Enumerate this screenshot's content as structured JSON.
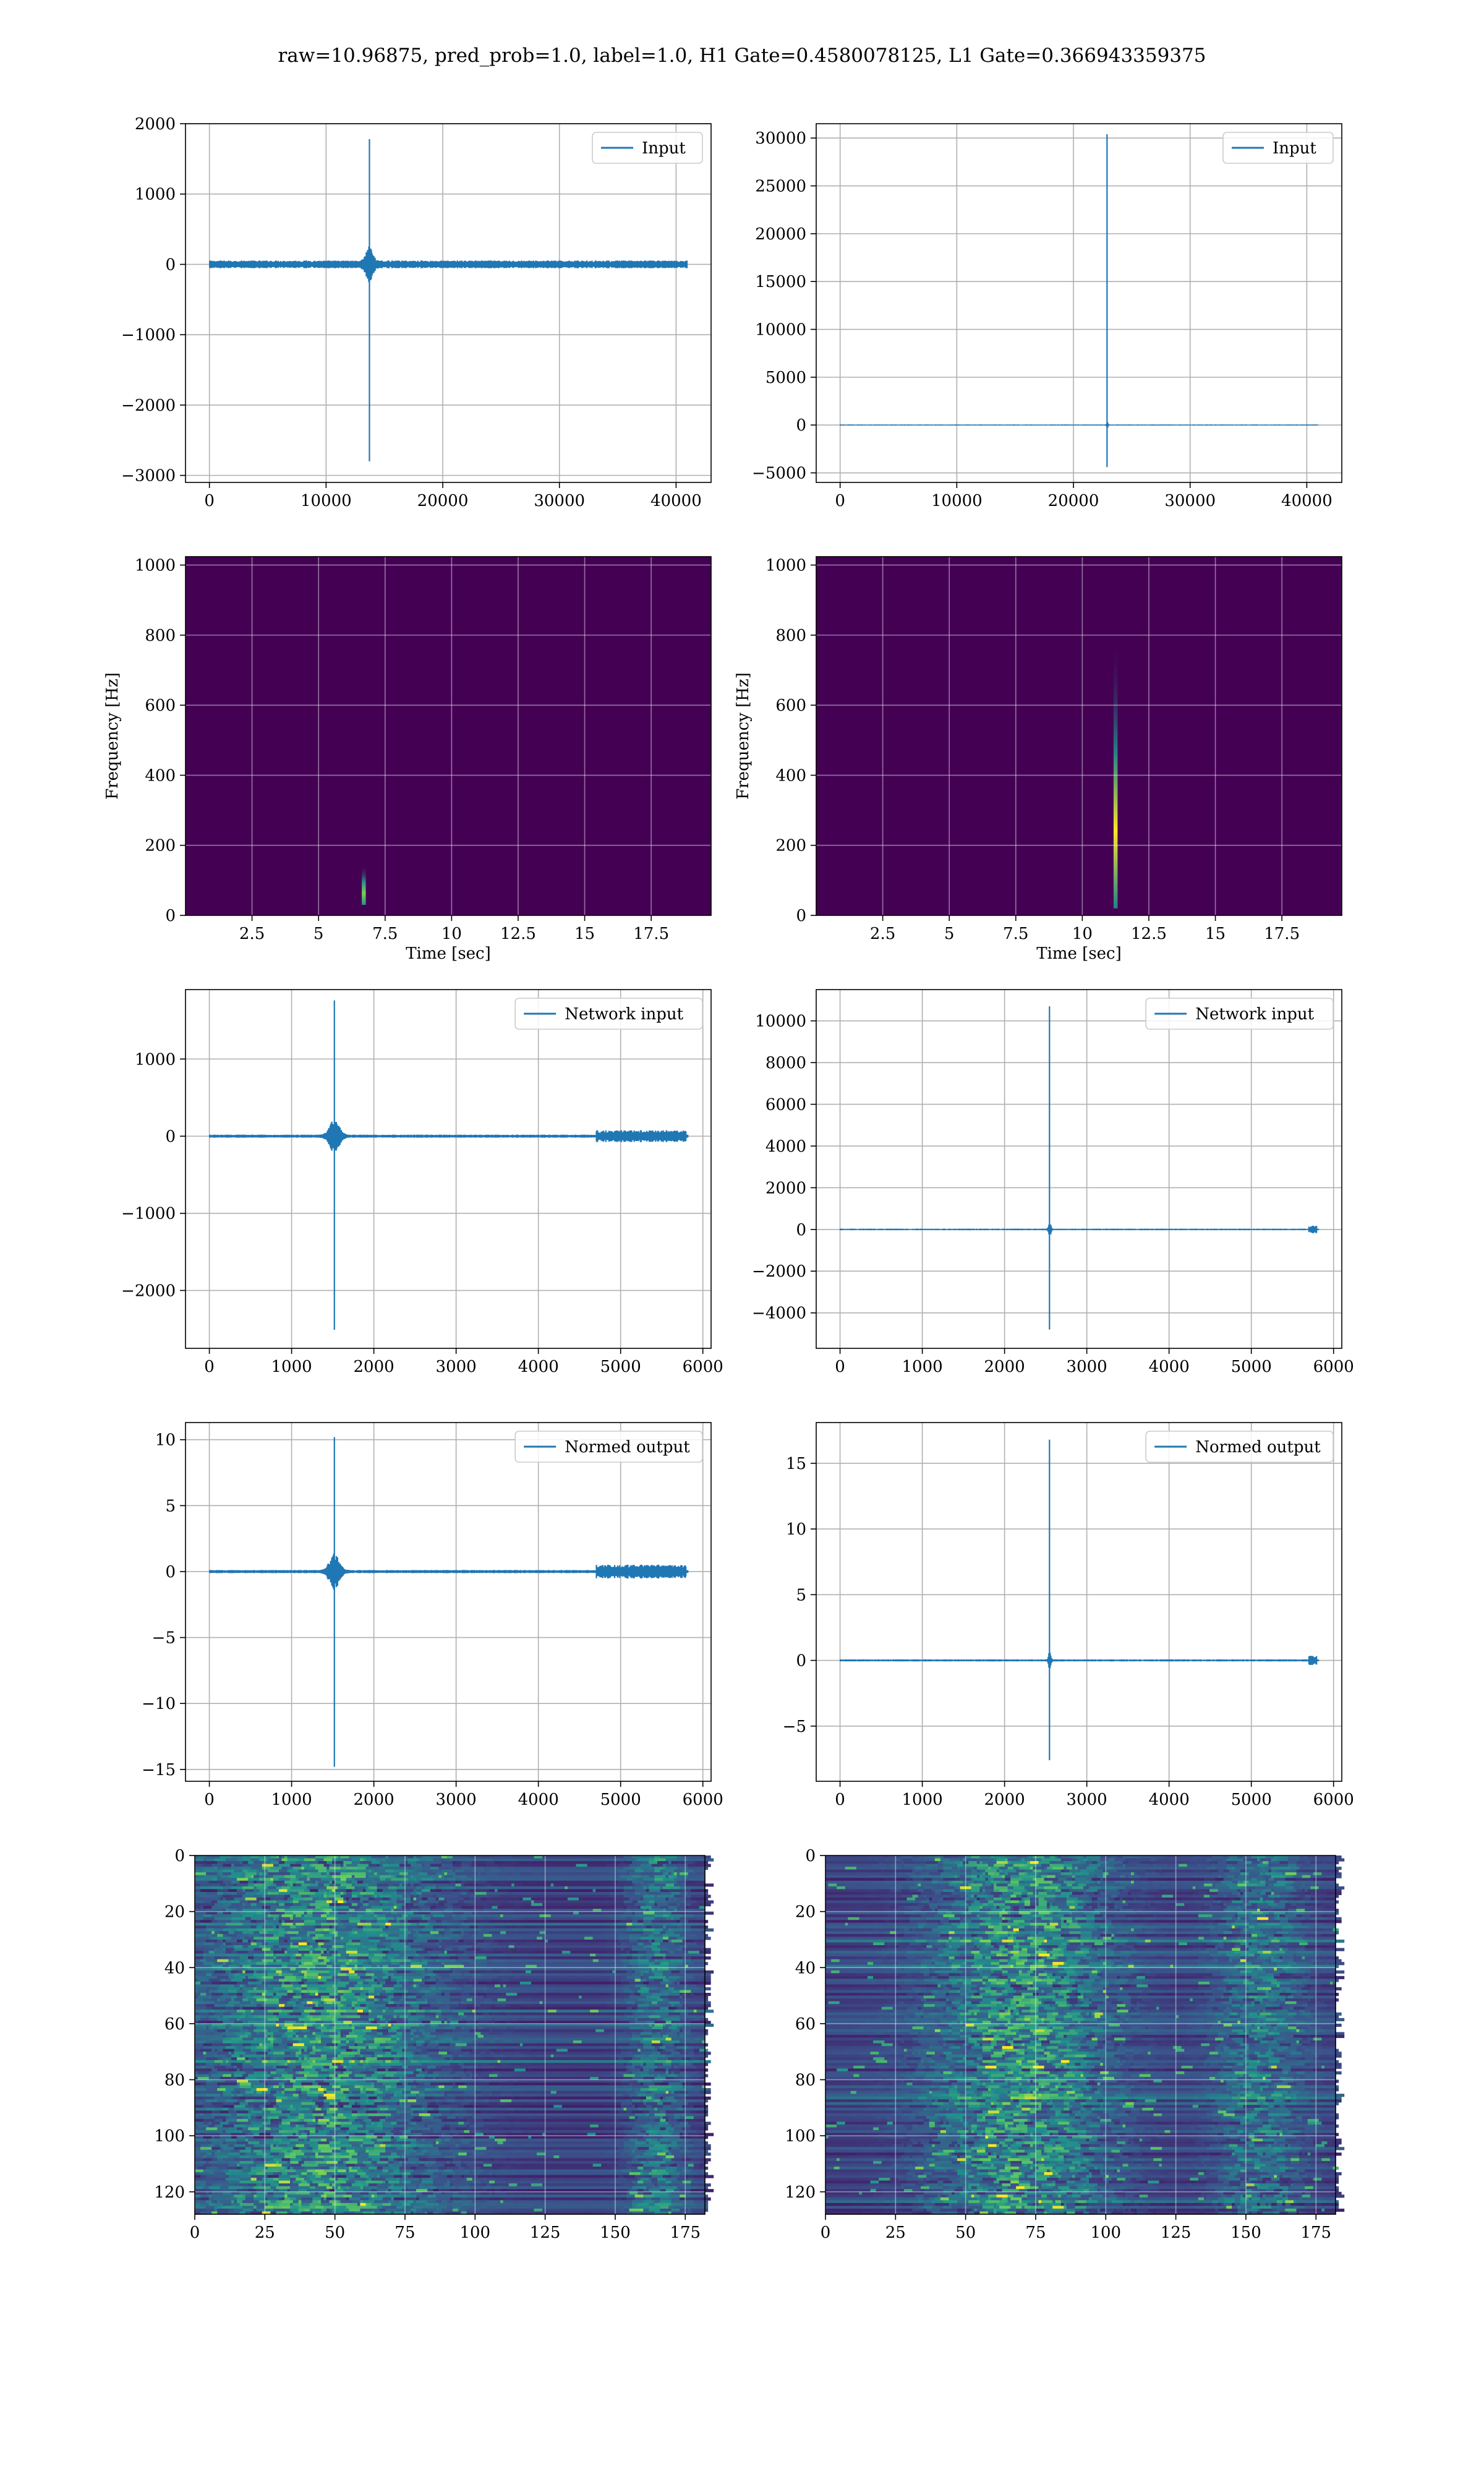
{
  "figure": {
    "suptitle": "raw=10.96875, pred_prob=1.0, label=1.0, H1 Gate=0.4580078125, L1 Gate=0.366943359375",
    "line_color": "#1f77b4"
  },
  "chart_data": [
    {
      "id": "h1-input",
      "type": "line",
      "series": [
        {
          "name": "Input"
        }
      ],
      "legend": "top-right",
      "grid": true,
      "xlim": [
        -2050,
        43000
      ],
      "ylim": [
        -3100,
        2000
      ],
      "xticks": [
        0,
        10000,
        20000,
        30000,
        40000
      ],
      "yticks": [
        -3000,
        -2000,
        -1000,
        0,
        1000,
        2000
      ],
      "signal": {
        "n": 40960,
        "noise_amp": 55,
        "burst_center": 13700,
        "burst_width": 900,
        "burst_amp": 180,
        "spike_max": 1780,
        "spike_min": -2800
      }
    },
    {
      "id": "l1-input",
      "type": "line",
      "series": [
        {
          "name": "Input"
        }
      ],
      "legend": "top-right",
      "grid": true,
      "xlim": [
        -2050,
        43000
      ],
      "ylim": [
        -6000,
        31500
      ],
      "xticks": [
        0,
        10000,
        20000,
        30000,
        40000
      ],
      "yticks": [
        -5000,
        0,
        5000,
        10000,
        15000,
        20000,
        25000,
        30000
      ],
      "signal": {
        "n": 40960,
        "noise_amp": 60,
        "burst_center": 22900,
        "burst_width": 160,
        "burst_amp": 400,
        "spike_max": 30400,
        "spike_min": -4400
      }
    },
    {
      "id": "h1-spectrogram",
      "type": "heatmap",
      "xlabel": "Time [sec]",
      "ylabel": "Frequency [Hz]",
      "grid": true,
      "xlim": [
        0,
        19.75
      ],
      "ylim": [
        0,
        1024
      ],
      "xticks": [
        2.5,
        5.0,
        7.5,
        10.0,
        12.5,
        15.0,
        17.5
      ],
      "yticks": [
        0,
        200,
        400,
        600,
        800,
        1000
      ],
      "background": "#440154",
      "blobs": [
        {
          "t": 6.7,
          "f_low": 30,
          "f_high": 140,
          "width": 0.25,
          "color": "#2a9d8f",
          "peak_color": "#7ad151"
        }
      ]
    },
    {
      "id": "l1-spectrogram",
      "type": "heatmap",
      "xlabel": "Time [sec]",
      "ylabel": "Frequency [Hz]",
      "grid": true,
      "xlim": [
        0,
        19.75
      ],
      "ylim": [
        0,
        1024
      ],
      "xticks": [
        2.5,
        5.0,
        7.5,
        10.0,
        12.5,
        15.0,
        17.5
      ],
      "yticks": [
        0,
        200,
        400,
        600,
        800,
        1000
      ],
      "background": "#440154",
      "blobs": [
        {
          "t": 11.25,
          "f_low": 20,
          "f_high": 760,
          "width": 0.25,
          "color": "#21918c",
          "peak_color": "#fde725"
        }
      ]
    },
    {
      "id": "h1-network-input",
      "type": "line",
      "series": [
        {
          "name": "Network input"
        }
      ],
      "legend": "top-right",
      "grid": true,
      "xlim": [
        -290,
        6100
      ],
      "ylim": [
        -2750,
        1900
      ],
      "xticks": [
        0,
        1000,
        2000,
        3000,
        4000,
        5000,
        6000
      ],
      "yticks": [
        -2000,
        -1000,
        0,
        1000
      ],
      "signal": {
        "n": 5820,
        "noise_amp": 20,
        "burst_center": 1520,
        "burst_width": 180,
        "burst_amp": 170,
        "spike_max": 1760,
        "spike_min": -2510,
        "tail_start": 4700,
        "tail_end": 5800,
        "tail_amp": 50
      }
    },
    {
      "id": "l1-network-input",
      "type": "line",
      "series": [
        {
          "name": "Network input"
        }
      ],
      "legend": "top-right",
      "grid": true,
      "xlim": [
        -290,
        6100
      ],
      "ylim": [
        -5700,
        11500
      ],
      "xticks": [
        0,
        1000,
        2000,
        3000,
        4000,
        5000,
        6000
      ],
      "yticks": [
        -4000,
        -2000,
        0,
        2000,
        4000,
        6000,
        8000,
        10000
      ],
      "signal": {
        "n": 5820,
        "noise_amp": 40,
        "burst_center": 2550,
        "burst_width": 40,
        "burst_amp": 300,
        "spike_max": 10700,
        "spike_min": -4800,
        "tail_start": 5700,
        "tail_end": 5800,
        "tail_amp": 120
      }
    },
    {
      "id": "h1-normed-output",
      "type": "line",
      "series": [
        {
          "name": "Normed output"
        }
      ],
      "legend": "top-right",
      "grid": true,
      "xlim": [
        -290,
        6100
      ],
      "ylim": [
        -15.9,
        11.3
      ],
      "xticks": [
        0,
        1000,
        2000,
        3000,
        4000,
        5000,
        6000
      ],
      "yticks": [
        -15,
        -10,
        -5,
        0,
        5,
        10
      ],
      "signal": {
        "n": 5820,
        "noise_amp": 0.12,
        "burst_center": 1520,
        "burst_width": 180,
        "burst_amp": 1.1,
        "spike_max": 10.2,
        "spike_min": -14.8,
        "tail_start": 4700,
        "tail_end": 5800,
        "tail_amp": 0.35
      }
    },
    {
      "id": "l1-normed-output",
      "type": "line",
      "series": [
        {
          "name": "Normed output"
        }
      ],
      "legend": "top-right",
      "grid": true,
      "xlim": [
        -290,
        6100
      ],
      "ylim": [
        -9.2,
        18.1
      ],
      "xticks": [
        0,
        1000,
        2000,
        3000,
        4000,
        5000,
        6000
      ],
      "yticks": [
        -5,
        0,
        5,
        10,
        15
      ],
      "signal": {
        "n": 5820,
        "noise_amp": 0.08,
        "burst_center": 2550,
        "burst_width": 40,
        "burst_amp": 0.6,
        "spike_max": 16.8,
        "spike_min": -7.6,
        "tail_start": 5700,
        "tail_end": 5800,
        "tail_amp": 0.25
      }
    },
    {
      "id": "h1-feature-map",
      "type": "heatmap",
      "grid": true,
      "xlim": [
        0,
        182
      ],
      "ylim": [
        128,
        0
      ],
      "xticks": [
        0,
        25,
        50,
        75,
        100,
        125,
        150,
        175
      ],
      "yticks": [
        0,
        20,
        40,
        60,
        80,
        100,
        120
      ],
      "rows": 128,
      "cols": 182,
      "colormap": [
        "#440154",
        "#3b528b",
        "#21918c",
        "#5ec962",
        "#fde725"
      ],
      "activity": {
        "center": 45,
        "spread": 40,
        "tail_center": 165,
        "tail_spread": 10
      }
    },
    {
      "id": "l1-feature-map",
      "type": "heatmap",
      "grid": true,
      "xlim": [
        0,
        182
      ],
      "ylim": [
        128,
        0
      ],
      "xticks": [
        0,
        25,
        50,
        75,
        100,
        125,
        150,
        175
      ],
      "yticks": [
        0,
        20,
        40,
        60,
        80,
        100,
        120
      ],
      "rows": 128,
      "cols": 182,
      "colormap": [
        "#440154",
        "#3b528b",
        "#21918c",
        "#5ec962",
        "#fde725"
      ],
      "activity": {
        "center": 70,
        "spread": 30,
        "tail_center": 155,
        "tail_spread": 15
      }
    }
  ]
}
